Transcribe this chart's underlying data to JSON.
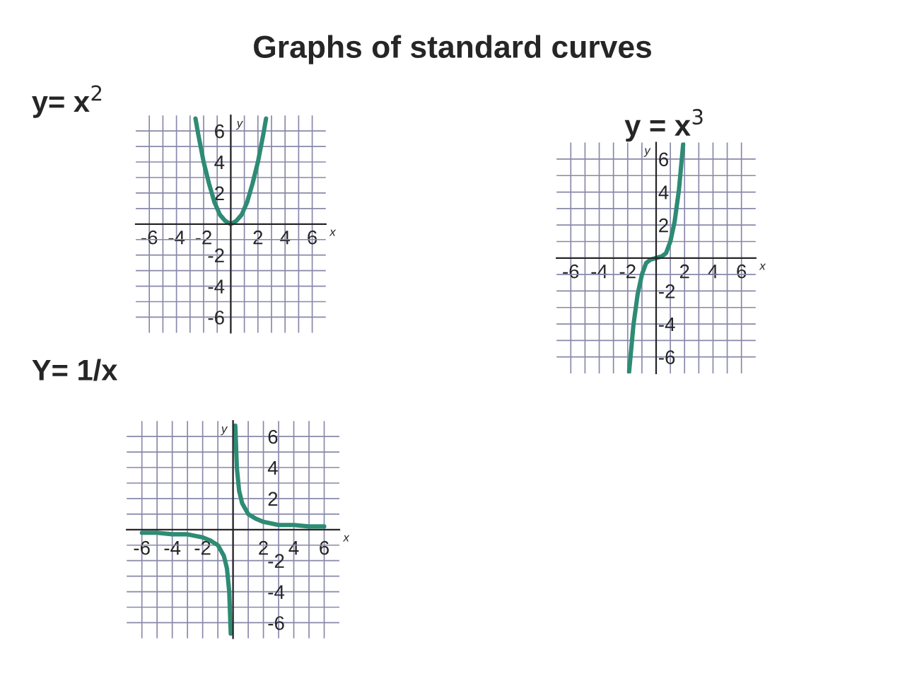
{
  "chart_data": [
    {
      "type": "line",
      "title": "y= x$^{2}$",
      "annotations": [
        "Graphs of standard curves"
      ],
      "x": [
        -2.6,
        -2.4,
        -2,
        -1.6,
        -1.2,
        -0.8,
        -0.4,
        0,
        0.4,
        0.8,
        1.2,
        1.6,
        2,
        2.4,
        2.6
      ],
      "series": [
        {
          "color": "#2e8b74",
          "values": [
            6.8,
            5.8,
            4,
            2.6,
            1.4,
            0.6,
            0.2,
            0,
            0.2,
            0.6,
            1.4,
            2.6,
            4,
            5.8,
            6.8
          ]
        }
      ],
      "xlim": [
        -7,
        7
      ],
      "ylim": [
        -7,
        7
      ],
      "xticks": [
        {
          "value": -6,
          "label": "-6"
        },
        {
          "value": -5,
          "label": null
        },
        {
          "value": -4,
          "label": "-4"
        },
        {
          "value": -3,
          "label": null
        },
        {
          "value": -2,
          "label": "-2"
        },
        {
          "value": -1,
          "label": null
        },
        {
          "value": 0,
          "label": null
        },
        {
          "value": 1,
          "label": null
        },
        {
          "value": 2,
          "label": "2"
        },
        {
          "value": 3,
          "label": null
        },
        {
          "value": 4,
          "label": "4"
        },
        {
          "value": 5,
          "label": null
        },
        {
          "value": 6,
          "label": "6"
        }
      ],
      "yticks": [
        {
          "value": -6,
          "label": "-6"
        },
        {
          "value": -5,
          "label": null
        },
        {
          "value": -4,
          "label": "-4"
        },
        {
          "value": -3,
          "label": null
        },
        {
          "value": -2,
          "label": "-2"
        },
        {
          "value": -1,
          "label": null
        },
        {
          "value": 0,
          "label": null
        },
        {
          "value": 1,
          "label": null
        },
        {
          "value": 2,
          "label": "2"
        },
        {
          "value": 3,
          "label": null
        },
        {
          "value": 4,
          "label": "4"
        },
        {
          "value": 5,
          "label": null
        },
        {
          "value": 6,
          "label": "6"
        }
      ],
      "grid": true,
      "xlabel": "x",
      "ylabel": "y"
    },
    {
      "type": "line",
      "title": "y = x$^{3}$",
      "x": [
        -1.9,
        -1.6,
        -1.3,
        -1,
        -0.7,
        -0.4,
        0,
        0.4,
        0.7,
        1,
        1.3,
        1.6,
        1.9
      ],
      "series": [
        {
          "color": "#2e8b74",
          "values": [
            -6.9,
            -4.1,
            -2.2,
            -1,
            -0.3,
            -0.1,
            0,
            0.1,
            0.3,
            1,
            2.2,
            4.1,
            6.9
          ]
        }
      ],
      "xlim": [
        -7,
        7
      ],
      "ylim": [
        -7,
        7
      ],
      "xticks": [
        {
          "value": -6,
          "label": "-6"
        },
        {
          "value": -5,
          "label": null
        },
        {
          "value": -4,
          "label": "-4"
        },
        {
          "value": -3,
          "label": null
        },
        {
          "value": -2,
          "label": "-2"
        },
        {
          "value": -1,
          "label": null
        },
        {
          "value": 0,
          "label": null
        },
        {
          "value": 1,
          "label": null
        },
        {
          "value": 2,
          "label": "2"
        },
        {
          "value": 3,
          "label": null
        },
        {
          "value": 4,
          "label": "4"
        },
        {
          "value": 5,
          "label": null
        },
        {
          "value": 6,
          "label": "6"
        }
      ],
      "yticks": [
        {
          "value": -6,
          "label": "-6"
        },
        {
          "value": -5,
          "label": null
        },
        {
          "value": -4,
          "label": "-4"
        },
        {
          "value": -3,
          "label": null
        },
        {
          "value": -2,
          "label": "-2"
        },
        {
          "value": -1,
          "label": null
        },
        {
          "value": 0,
          "label": null
        },
        {
          "value": 1,
          "label": null
        },
        {
          "value": 2,
          "label": "2"
        },
        {
          "value": 3,
          "label": null
        },
        {
          "value": 4,
          "label": "4"
        },
        {
          "value": 5,
          "label": null
        },
        {
          "value": 6,
          "label": "6"
        }
      ],
      "grid": true,
      "xlabel": "x",
      "ylabel": "y"
    },
    {
      "type": "line",
      "title": "Y= 1/x",
      "series": [
        {
          "color": "#2e8b74",
          "x": [
            0.15,
            0.25,
            0.4,
            0.6,
            1,
            1.5,
            2,
            3,
            4,
            5,
            6
          ],
          "values": [
            6.7,
            4,
            2.5,
            1.7,
            1,
            0.7,
            0.5,
            0.3,
            0.3,
            0.2,
            0.2
          ]
        },
        {
          "color": "#2e8b74",
          "x": [
            -6,
            -5,
            -4,
            -3,
            -2,
            -1.5,
            -1,
            -0.6,
            -0.4,
            -0.25,
            -0.15
          ],
          "values": [
            -0.2,
            -0.2,
            -0.3,
            -0.3,
            -0.5,
            -0.7,
            -1,
            -1.7,
            -2.5,
            -4,
            -6.7
          ]
        }
      ],
      "xlim": [
        -7,
        7
      ],
      "ylim": [
        -7,
        7
      ],
      "xticks": [
        {
          "value": -6,
          "label": "-6"
        },
        {
          "value": -5,
          "label": null
        },
        {
          "value": -4,
          "label": "-4"
        },
        {
          "value": -3,
          "label": null
        },
        {
          "value": -2,
          "label": "-2"
        },
        {
          "value": -1,
          "label": null
        },
        {
          "value": 0,
          "label": null
        },
        {
          "value": 1,
          "label": null
        },
        {
          "value": 2,
          "label": "2"
        },
        {
          "value": 3,
          "label": null
        },
        {
          "value": 4,
          "label": "4"
        },
        {
          "value": 5,
          "label": null
        },
        {
          "value": 6,
          "label": "6"
        }
      ],
      "yticks": [
        {
          "value": -6,
          "label": "-6"
        },
        {
          "value": -5,
          "label": null
        },
        {
          "value": -4,
          "label": "-4"
        },
        {
          "value": -3,
          "label": null
        },
        {
          "value": -2,
          "label": "-2"
        },
        {
          "value": -1,
          "label": null
        },
        {
          "value": 0,
          "label": null
        },
        {
          "value": 1,
          "label": null
        },
        {
          "value": 2,
          "label": "2"
        },
        {
          "value": 3,
          "label": null
        },
        {
          "value": 4,
          "label": "4"
        },
        {
          "value": 5,
          "label": null
        },
        {
          "value": 6,
          "label": "6"
        }
      ],
      "grid": true,
      "xlabel": "x",
      "ylabel": "y"
    }
  ]
}
